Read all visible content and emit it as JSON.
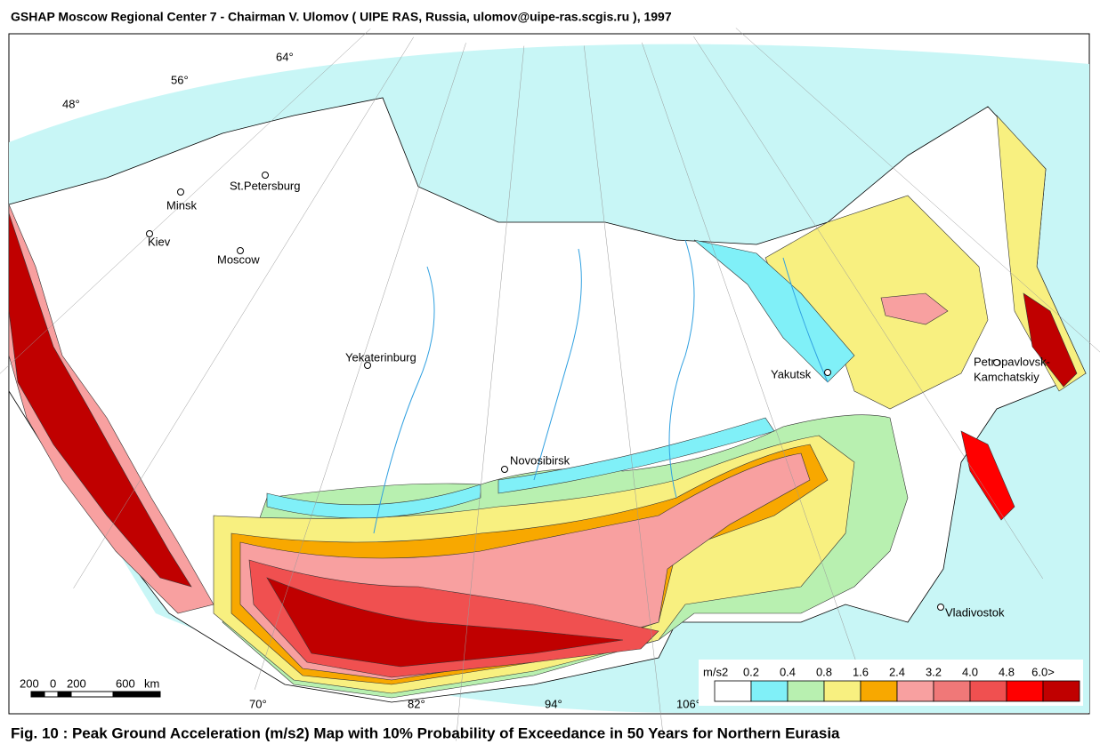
{
  "header": {
    "title": "GSHAP Moscow Regional Center 7 - Chairman V. Ulomov  ( UIPE RAS, Russia, ulomov@uipe-ras.scgis.ru ), 1997"
  },
  "map": {
    "graticule_labels": [
      "48°",
      "56°",
      "64°",
      "70°",
      "82°",
      "94°",
      "106°"
    ],
    "cities": [
      "St.Petersburg",
      "Minsk",
      "Kiev",
      "Moscow",
      "Yekaterinburg",
      "Yakutsk",
      "Novosibirsk",
      "Petropavlovsk-",
      "Kamchatskiy",
      "Vladivostok"
    ],
    "scale_bar": [
      "200",
      "0",
      "200",
      "600",
      "km"
    ]
  },
  "legend": {
    "unit": "m/s2",
    "breaks": [
      "0.2",
      "0.4",
      "0.8",
      "1.6",
      "2.4",
      "3.2",
      "4.0",
      "4.8",
      "6.0>"
    ],
    "colors": [
      "#ffffff",
      "#80f0f8",
      "#b8f0b0",
      "#f8f080",
      "#f8a800",
      "#f8a0a0",
      "#f07878",
      "#f05050",
      "#ff0000",
      "#c00000"
    ]
  },
  "caption": "Fig. 10 : Peak Ground Acceleration (m/s2) Map with 10% Probability of Exceedance in 50 Years for Northern Eurasia"
}
